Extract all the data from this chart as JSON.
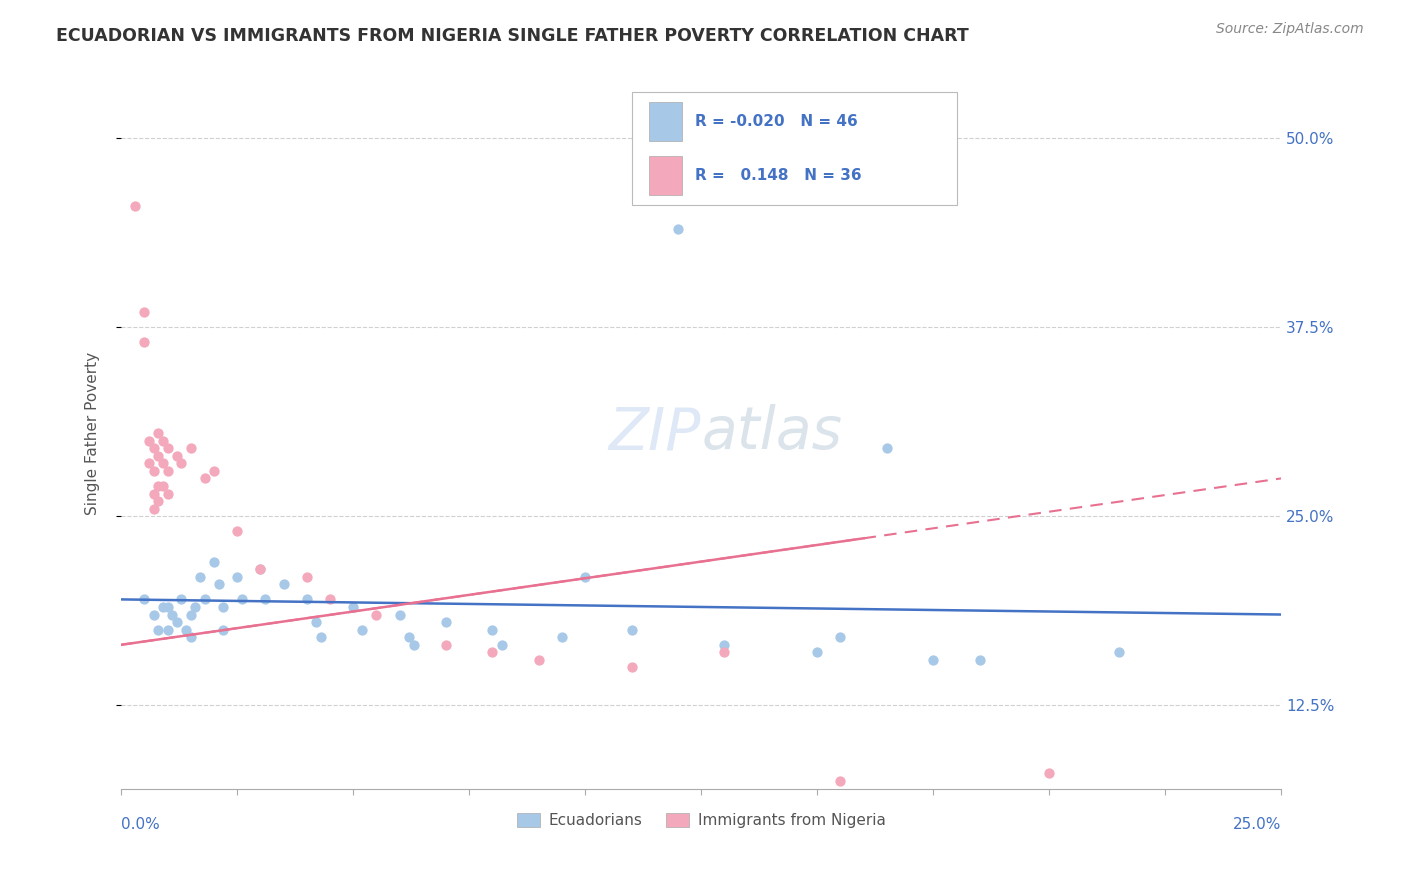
{
  "title": "ECUADORIAN VS IMMIGRANTS FROM NIGERIA SINGLE FATHER POVERTY CORRELATION CHART",
  "source": "Source: ZipAtlas.com",
  "ylabel": "Single Father Poverty",
  "yticks": [
    "12.5%",
    "25.0%",
    "37.5%",
    "50.0%"
  ],
  "ytick_vals": [
    0.125,
    0.25,
    0.375,
    0.5
  ],
  "xmin": 0.0,
  "xmax": 0.25,
  "ymin": 0.07,
  "ymax": 0.54,
  "R_blue": -0.02,
  "N_blue": 46,
  "R_pink": 0.148,
  "N_pink": 36,
  "blue_color": "#a8c8e8",
  "pink_color": "#f4a8bc",
  "blue_line_color": "#4472c4",
  "pink_line_color": "#e87090",
  "blue_scatter": [
    [
      0.005,
      0.195
    ],
    [
      0.007,
      0.185
    ],
    [
      0.008,
      0.175
    ],
    [
      0.009,
      0.19
    ],
    [
      0.01,
      0.19
    ],
    [
      0.01,
      0.175
    ],
    [
      0.011,
      0.185
    ],
    [
      0.012,
      0.18
    ],
    [
      0.013,
      0.195
    ],
    [
      0.014,
      0.175
    ],
    [
      0.015,
      0.185
    ],
    [
      0.015,
      0.17
    ],
    [
      0.016,
      0.19
    ],
    [
      0.017,
      0.21
    ],
    [
      0.018,
      0.195
    ],
    [
      0.02,
      0.22
    ],
    [
      0.021,
      0.205
    ],
    [
      0.022,
      0.19
    ],
    [
      0.022,
      0.175
    ],
    [
      0.025,
      0.21
    ],
    [
      0.026,
      0.195
    ],
    [
      0.03,
      0.215
    ],
    [
      0.031,
      0.195
    ],
    [
      0.035,
      0.205
    ],
    [
      0.04,
      0.195
    ],
    [
      0.042,
      0.18
    ],
    [
      0.043,
      0.17
    ],
    [
      0.05,
      0.19
    ],
    [
      0.052,
      0.175
    ],
    [
      0.06,
      0.185
    ],
    [
      0.062,
      0.17
    ],
    [
      0.063,
      0.165
    ],
    [
      0.07,
      0.18
    ],
    [
      0.08,
      0.175
    ],
    [
      0.082,
      0.165
    ],
    [
      0.095,
      0.17
    ],
    [
      0.11,
      0.175
    ],
    [
      0.13,
      0.165
    ],
    [
      0.15,
      0.16
    ],
    [
      0.155,
      0.17
    ],
    [
      0.175,
      0.155
    ],
    [
      0.185,
      0.155
    ],
    [
      0.215,
      0.16
    ],
    [
      0.12,
      0.44
    ],
    [
      0.1,
      0.21
    ],
    [
      0.165,
      0.295
    ]
  ],
  "pink_scatter": [
    [
      0.003,
      0.455
    ],
    [
      0.005,
      0.385
    ],
    [
      0.005,
      0.365
    ],
    [
      0.006,
      0.3
    ],
    [
      0.006,
      0.285
    ],
    [
      0.007,
      0.295
    ],
    [
      0.007,
      0.28
    ],
    [
      0.007,
      0.265
    ],
    [
      0.007,
      0.255
    ],
    [
      0.008,
      0.305
    ],
    [
      0.008,
      0.29
    ],
    [
      0.008,
      0.27
    ],
    [
      0.008,
      0.26
    ],
    [
      0.009,
      0.3
    ],
    [
      0.009,
      0.285
    ],
    [
      0.009,
      0.27
    ],
    [
      0.01,
      0.295
    ],
    [
      0.01,
      0.28
    ],
    [
      0.01,
      0.265
    ],
    [
      0.012,
      0.29
    ],
    [
      0.013,
      0.285
    ],
    [
      0.015,
      0.295
    ],
    [
      0.018,
      0.275
    ],
    [
      0.02,
      0.28
    ],
    [
      0.025,
      0.24
    ],
    [
      0.03,
      0.215
    ],
    [
      0.04,
      0.21
    ],
    [
      0.045,
      0.195
    ],
    [
      0.055,
      0.185
    ],
    [
      0.07,
      0.165
    ],
    [
      0.08,
      0.16
    ],
    [
      0.09,
      0.155
    ],
    [
      0.11,
      0.15
    ],
    [
      0.13,
      0.16
    ],
    [
      0.155,
      0.075
    ],
    [
      0.2,
      0.08
    ]
  ],
  "blue_line": [
    [
      0.0,
      0.195
    ],
    [
      0.25,
      0.185
    ]
  ],
  "pink_line": [
    [
      0.0,
      0.165
    ],
    [
      0.25,
      0.275
    ]
  ]
}
